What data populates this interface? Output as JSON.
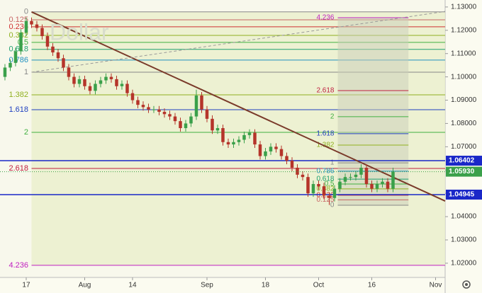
{
  "chart_data": {
    "type": "candlestick",
    "watermark": "Dollar",
    "x": [
      -4,
      -3,
      -2,
      -1,
      0,
      1,
      2,
      3,
      4,
      5,
      6,
      7,
      8,
      9,
      10,
      11,
      12,
      13,
      14,
      15,
      16,
      17,
      18,
      19,
      20,
      21,
      22,
      23,
      24,
      25,
      26,
      27,
      28,
      29,
      30,
      31,
      32,
      33,
      34,
      35,
      36,
      37,
      38,
      39,
      40,
      41,
      42,
      43,
      44,
      45,
      46,
      47,
      48,
      49,
      50,
      51,
      52,
      53,
      54,
      55,
      56,
      57,
      58,
      59,
      60,
      61,
      62,
      63,
      64,
      65,
      66,
      67,
      68,
      69
    ],
    "open": [
      1.1,
      1.104,
      1.106,
      1.111,
      1.119,
      1.124,
      1.1225,
      1.121,
      1.1175,
      1.113,
      1.1105,
      1.108,
      1.104,
      1.1,
      1.097,
      1.099,
      1.096,
      1.094,
      1.097,
      1.0985,
      1.1,
      1.099,
      1.096,
      1.097,
      1.093,
      1.09,
      1.088,
      1.087,
      1.086,
      1.086,
      1.085,
      1.084,
      1.083,
      1.081,
      1.078,
      1.08,
      1.083,
      1.092,
      1.086,
      1.082,
      1.077,
      1.078,
      1.072,
      1.071,
      1.072,
      1.073,
      1.075,
      1.076,
      1.071,
      1.066,
      1.068,
      1.07,
      1.069,
      1.066,
      1.064,
      1.061,
      1.058,
      1.057,
      1.05,
      1.054,
      1.053,
      1.049,
      1.048,
      1.052,
      1.055,
      1.057,
      1.057,
      1.058,
      1.061,
      1.054,
      1.052,
      1.054,
      1.055,
      1.052
    ],
    "high": [
      1.1055,
      1.1075,
      1.1125,
      1.1205,
      1.1255,
      1.1255,
      1.124,
      1.1225,
      1.119,
      1.1145,
      1.112,
      1.1095,
      1.1055,
      1.1015,
      1.1005,
      1.1005,
      1.0975,
      1.0985,
      1.1,
      1.1015,
      1.1015,
      1.1005,
      1.0985,
      1.0985,
      1.0945,
      1.0915,
      1.0895,
      1.0885,
      1.0875,
      1.0875,
      1.0865,
      1.0855,
      1.0845,
      1.0825,
      1.0815,
      1.0845,
      1.0945,
      1.0935,
      1.0875,
      1.0835,
      1.0795,
      1.0795,
      1.0735,
      1.0735,
      1.0745,
      1.0765,
      1.0775,
      1.0775,
      1.0725,
      1.0695,
      1.0715,
      1.0715,
      1.0705,
      1.0675,
      1.0655,
      1.0625,
      1.0595,
      1.0585,
      1.0555,
      1.0555,
      1.0545,
      1.0505,
      1.0535,
      1.0565,
      1.0585,
      1.0585,
      1.0595,
      1.0625,
      1.0625,
      1.0555,
      1.0555,
      1.0565,
      1.0565,
      1.061
    ],
    "low": [
      1.0985,
      1.1025,
      1.1045,
      1.1095,
      1.1175,
      1.121,
      1.1195,
      1.116,
      1.1115,
      1.109,
      1.1065,
      1.1025,
      1.0985,
      1.0955,
      1.0955,
      1.0945,
      1.0925,
      1.0925,
      1.0955,
      1.097,
      1.0975,
      1.0945,
      1.0945,
      1.0915,
      1.0885,
      1.0865,
      1.0855,
      1.0845,
      1.0845,
      1.0835,
      1.0825,
      1.0815,
      1.0795,
      1.0765,
      1.0765,
      1.0785,
      1.0815,
      1.0845,
      1.0805,
      1.0755,
      1.0755,
      1.0705,
      1.0695,
      1.0695,
      1.0705,
      1.0715,
      1.0735,
      1.0695,
      1.0645,
      1.0645,
      1.0665,
      1.0675,
      1.0645,
      1.0625,
      1.0595,
      1.0565,
      1.0555,
      1.0485,
      1.0485,
      1.0515,
      1.0475,
      1.045,
      1.0465,
      1.0505,
      1.0535,
      1.0555,
      1.0555,
      1.0565,
      1.0525,
      1.0505,
      1.0505,
      1.0525,
      1.0505,
      1.0505
    ],
    "close": [
      1.104,
      1.106,
      1.111,
      1.119,
      1.124,
      1.1225,
      1.121,
      1.1175,
      1.113,
      1.1105,
      1.108,
      1.104,
      1.1,
      1.097,
      1.099,
      1.096,
      1.094,
      1.097,
      1.0985,
      1.1,
      1.099,
      1.096,
      1.097,
      1.093,
      1.09,
      1.088,
      1.087,
      1.086,
      1.086,
      1.085,
      1.084,
      1.083,
      1.081,
      1.078,
      1.08,
      1.083,
      1.092,
      1.086,
      1.082,
      1.077,
      1.078,
      1.072,
      1.071,
      1.072,
      1.073,
      1.075,
      1.076,
      1.071,
      1.066,
      1.068,
      1.07,
      1.069,
      1.066,
      1.064,
      1.061,
      1.058,
      1.057,
      1.05,
      1.054,
      1.053,
      1.049,
      1.048,
      1.052,
      1.055,
      1.057,
      1.057,
      1.058,
      1.061,
      1.054,
      1.052,
      1.054,
      1.055,
      1.052,
      1.0593
    ],
    "up_color": "#3aa04a",
    "down_color": "#b5342a",
    "xlim": [
      -4.93,
      78.8
    ],
    "ylim": [
      1.0139,
      1.133
    ],
    "xticks": [
      {
        "value": 0,
        "label": "17"
      },
      {
        "value": 11,
        "label": "Aug"
      },
      {
        "value": 20,
        "label": "14"
      },
      {
        "value": 34,
        "label": "Sep"
      },
      {
        "value": 45,
        "label": "18"
      },
      {
        "value": 55,
        "label": "Oct"
      },
      {
        "value": 65,
        "label": "16"
      },
      {
        "value": 77,
        "label": "Nov"
      }
    ],
    "yticks": [
      {
        "value": 1.02,
        "label": "1.02000"
      },
      {
        "value": 1.03,
        "label": "1.03000"
      },
      {
        "value": 1.04,
        "label": "1.04000"
      },
      {
        "value": 1.05,
        "label": "1.05000"
      },
      {
        "value": 1.06,
        "label": "1.06000"
      },
      {
        "value": 1.07,
        "label": "1.07000"
      },
      {
        "value": 1.08,
        "label": "1.08000"
      },
      {
        "value": 1.09,
        "label": "1.09000"
      },
      {
        "value": 1.1,
        "label": "1.10000"
      },
      {
        "value": 1.11,
        "label": "1.11000"
      },
      {
        "value": 1.12,
        "label": "1.12000"
      },
      {
        "value": 1.13,
        "label": "1.13000"
      }
    ],
    "fib_left": {
      "start": 1,
      "levels": [
        {
          "ratio": 0,
          "price": 1.1279,
          "color": "#888888"
        },
        {
          "ratio": 0.125,
          "price": 1.1245,
          "color": "#c86464"
        },
        {
          "ratio": 0.236,
          "price": 1.1215,
          "color": "#d03030"
        },
        {
          "ratio": 0.382,
          "price": 1.1178,
          "color": "#90b020"
        },
        {
          "ratio": 0.5,
          "price": 1.1148,
          "color": "#40b040"
        },
        {
          "ratio": 0.618,
          "price": 1.1118,
          "color": "#20a070"
        },
        {
          "ratio": 0.786,
          "price": 1.1072,
          "color": "#2090c0"
        },
        {
          "ratio": 1,
          "price": 1.102,
          "color": "#888888"
        },
        {
          "ratio": 1.382,
          "price": 1.0923,
          "color": "#90b020"
        },
        {
          "ratio": 1.618,
          "price": 1.0859,
          "color": "#2040c0"
        },
        {
          "ratio": 2,
          "price": 1.0762,
          "color": "#40b040"
        },
        {
          "ratio": 2.618,
          "price": 1.0607,
          "color": "#c02040"
        },
        {
          "ratio": 4.236,
          "price": 1.0191,
          "color": "#c020c0"
        }
      ]
    },
    "fib_right": {
      "start": 58.6,
      "end": 71.9,
      "levels": [
        {
          "ratio": 0,
          "price": 1.0449,
          "color": "#888888"
        },
        {
          "ratio": 0.125,
          "price": 1.0472,
          "color": "#c86464"
        },
        {
          "ratio": 0.236,
          "price": 1.0492,
          "color": "#d03030"
        },
        {
          "ratio": 0.382,
          "price": 1.0519,
          "color": "#90b020"
        },
        {
          "ratio": 0.5,
          "price": 1.054,
          "color": "#40b040"
        },
        {
          "ratio": 0.618,
          "price": 1.0561,
          "color": "#20a070"
        },
        {
          "ratio": 0.786,
          "price": 1.0595,
          "color": "#2090c0"
        },
        {
          "ratio": 1,
          "price": 1.0631,
          "color": "#888888"
        },
        {
          "ratio": 1.382,
          "price": 1.0707,
          "color": "#90b020"
        },
        {
          "ratio": 1.618,
          "price": 1.0756,
          "color": "#2040c0"
        },
        {
          "ratio": 2,
          "price": 1.0829,
          "color": "#40b040"
        },
        {
          "ratio": 2.618,
          "price": 1.0941,
          "color": "#c02040"
        },
        {
          "ratio": 4.236,
          "price": 1.1254,
          "color": "#c020c0"
        }
      ]
    },
    "trend_lines": [
      {
        "x": [
          1,
          78.8
        ],
        "y": [
          1.1279,
          1.0467
        ],
        "color": "#7a3a2a",
        "dashed": false
      },
      {
        "x": [
          1,
          78.8
        ],
        "y": [
          1.102,
          1.1281
        ],
        "color": "#999999",
        "dashed": true
      }
    ],
    "price_lines": [
      {
        "value": 1.06402,
        "label": "1.06402",
        "color": "#1a28c8"
      },
      {
        "value": 1.04945,
        "label": "1.04945",
        "color": "#1a28c8"
      }
    ],
    "last_price": {
      "value": 1.0593,
      "label": "1.05930",
      "color": "#3aa04a"
    }
  }
}
